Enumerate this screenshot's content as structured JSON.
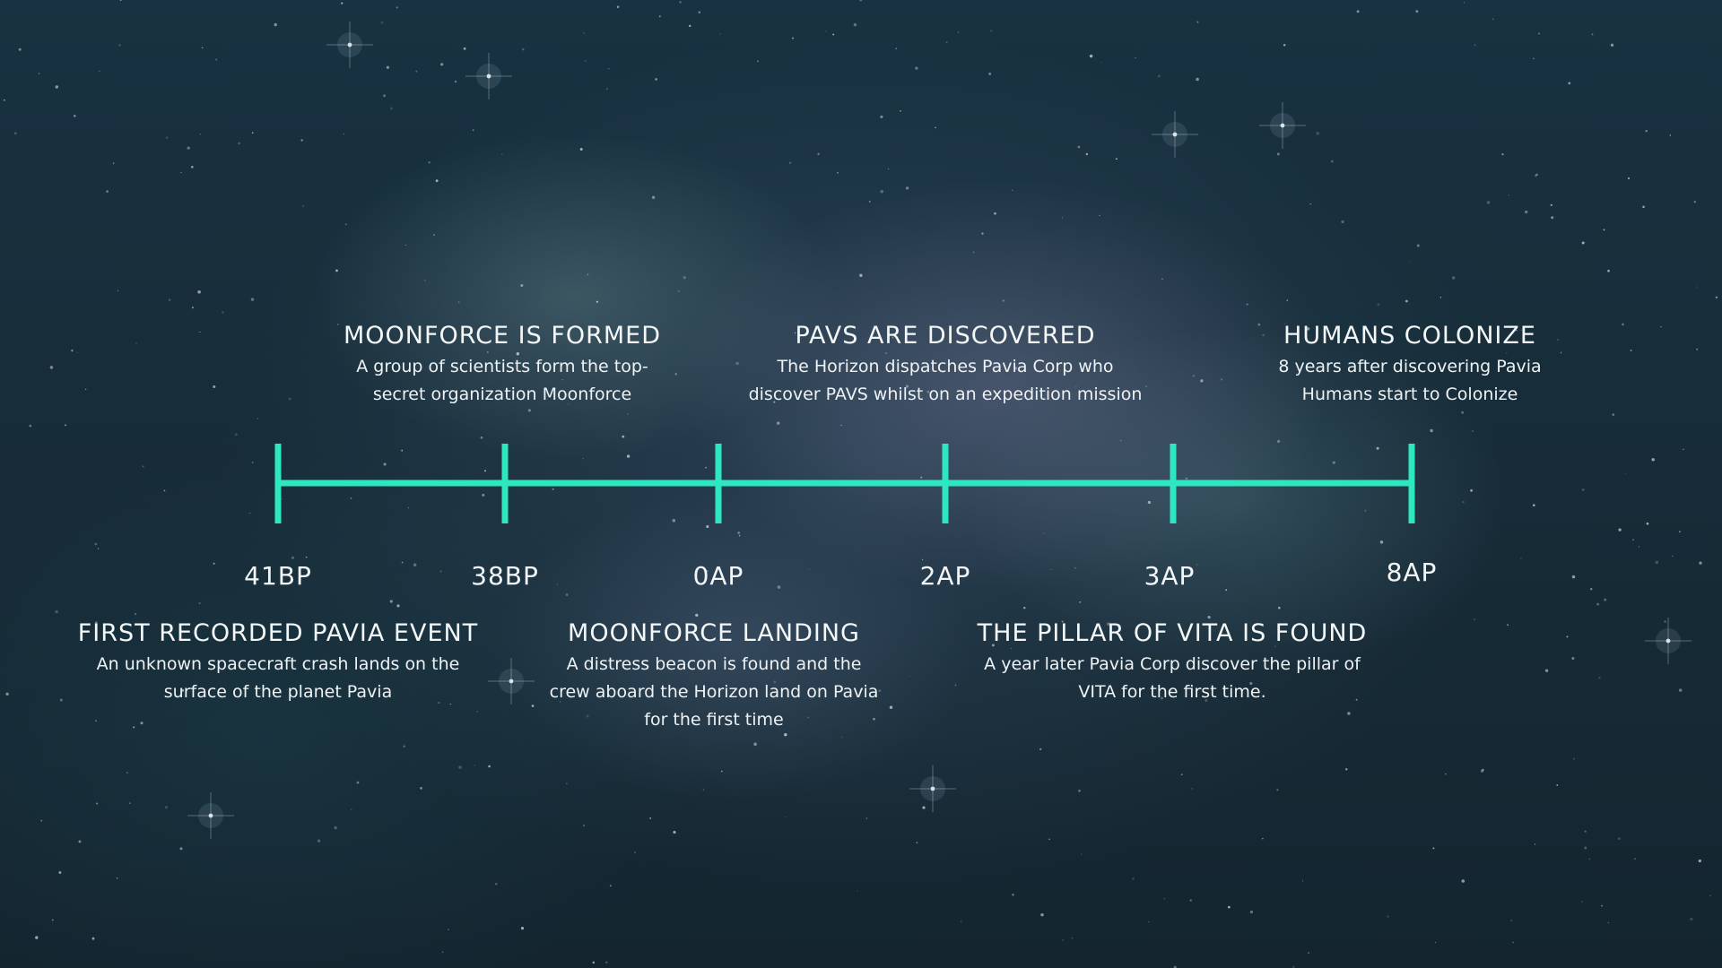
{
  "timeline": {
    "accent_color": "#2ee6c0",
    "ticks": [
      {
        "label": "41BP"
      },
      {
        "label": "38BP"
      },
      {
        "label": "0AP"
      },
      {
        "label": "2AP"
      },
      {
        "label": "3AP"
      },
      {
        "label": "8AP"
      }
    ]
  },
  "events_above": [
    {
      "title": "MOONFORCE IS FORMED",
      "description_lines": [
        "A group of scientists form the top-",
        "secret organization Moonforce"
      ]
    },
    {
      "title": "PAVS ARE DISCOVERED",
      "description_lines": [
        "The Horizon dispatches Pavia Corp who",
        "discover PAVS whilst on an expedition mission"
      ]
    },
    {
      "title": "HUMANS COLONIZE",
      "description_lines": [
        "8 years after discovering Pavia",
        "Humans start to Colonize"
      ]
    }
  ],
  "events_below": [
    {
      "title": "FIRST RECORDED PAVIA EVENT",
      "description_lines": [
        "An unknown spacecraft crash lands on the",
        "surface of the planet Pavia"
      ]
    },
    {
      "title": "MOONFORCE LANDING",
      "description_lines": [
        "A distress beacon is found and the",
        "crew aboard the Horizon land on Pavia",
        "for the first time"
      ]
    },
    {
      "title": "THE PILLAR OF VITA IS FOUND",
      "description_lines": [
        "A year later Pavia Corp discover the pillar of",
        "VITA for the first time."
      ]
    }
  ]
}
